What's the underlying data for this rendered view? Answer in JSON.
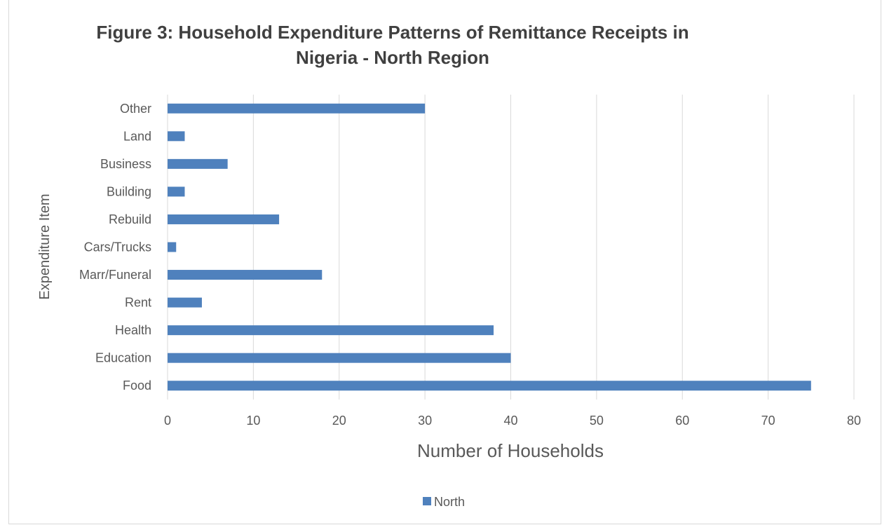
{
  "chart_data": {
    "type": "bar",
    "orientation": "horizontal",
    "title_line1": "Figure 3: Household Expenditure Patterns of Remittance Receipts in",
    "title_line2": "Nigeria - North Region",
    "xlabel": "Number of Households",
    "ylabel": "Expenditure Item",
    "xlim": [
      0,
      80
    ],
    "x_ticks": [
      "0",
      "10",
      "20",
      "30",
      "40",
      "50",
      "60",
      "70",
      "80"
    ],
    "grid": "vertical",
    "legend_placement": "bottom",
    "categories": [
      "Food",
      "Education",
      "Health",
      "Rent",
      "Marr/Funeral",
      "Cars/Trucks",
      "Rebuild",
      "Building",
      "Business",
      "Land",
      "Other"
    ],
    "series": [
      {
        "name": "North",
        "color": "#4f81bd",
        "values": [
          75,
          40,
          38,
          4,
          18,
          1,
          13,
          2,
          7,
          2,
          30
        ]
      }
    ]
  }
}
